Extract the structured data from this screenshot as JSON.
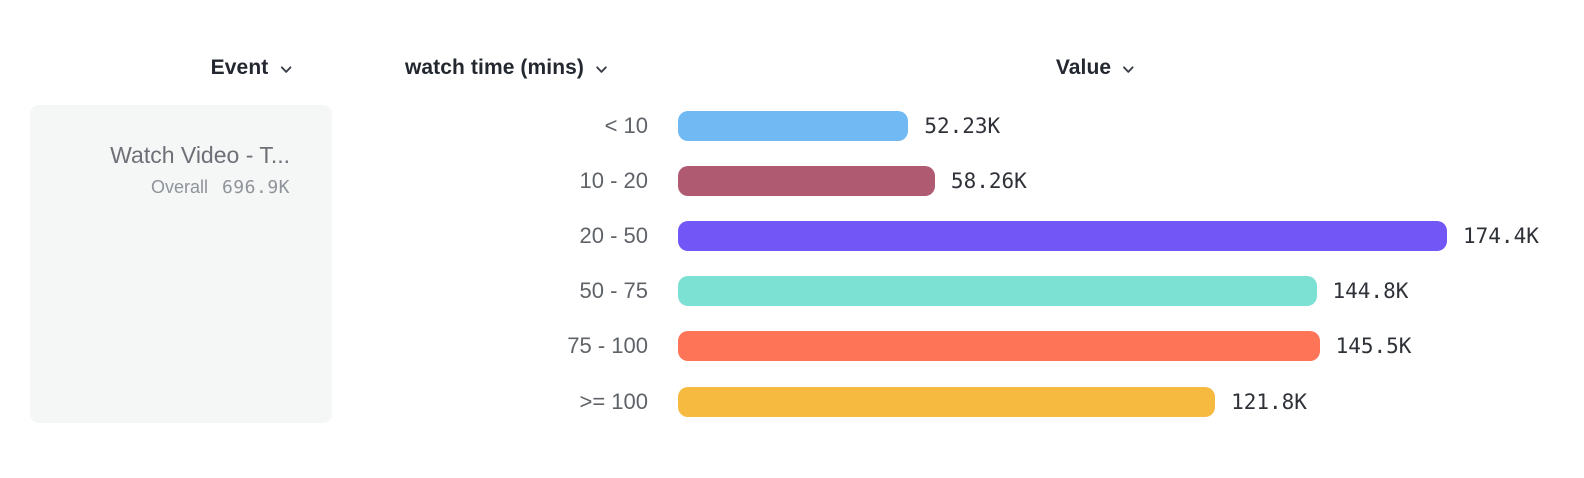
{
  "columns": {
    "event": {
      "label": "Event"
    },
    "breakdown": {
      "label": "watch time (mins)"
    },
    "value": {
      "label": "Value"
    }
  },
  "event_card": {
    "title": "Watch Video - T...",
    "overall_label": "Overall",
    "overall_value": "696.9K"
  },
  "chart_data": {
    "type": "bar",
    "orientation": "horizontal",
    "title": "",
    "xlabel": "Value",
    "ylabel": "watch time (mins)",
    "categories": [
      "< 10",
      "10 - 20",
      "20 - 50",
      "50 - 75",
      "75 - 100",
      ">= 100"
    ],
    "values": [
      52230,
      58260,
      174400,
      144800,
      145500,
      121800
    ],
    "value_labels": [
      "52.23K",
      "58.26K",
      "174.4K",
      "144.8K",
      "145.5K",
      "121.8K"
    ],
    "colors": [
      "#70b9f3",
      "#af5a71",
      "#7356f6",
      "#7ce0d3",
      "#fd7457",
      "#f6ba40"
    ],
    "xlim": [
      0,
      174400
    ],
    "grid": false,
    "legend": false
  },
  "ui_colors": {
    "header_text": "#23272f",
    "category_text": "#5f6368",
    "value_text": "#2e3138",
    "card_bg": "#f5f6f6",
    "card_text": "#6d7077",
    "card_muted": "#8f939a"
  }
}
